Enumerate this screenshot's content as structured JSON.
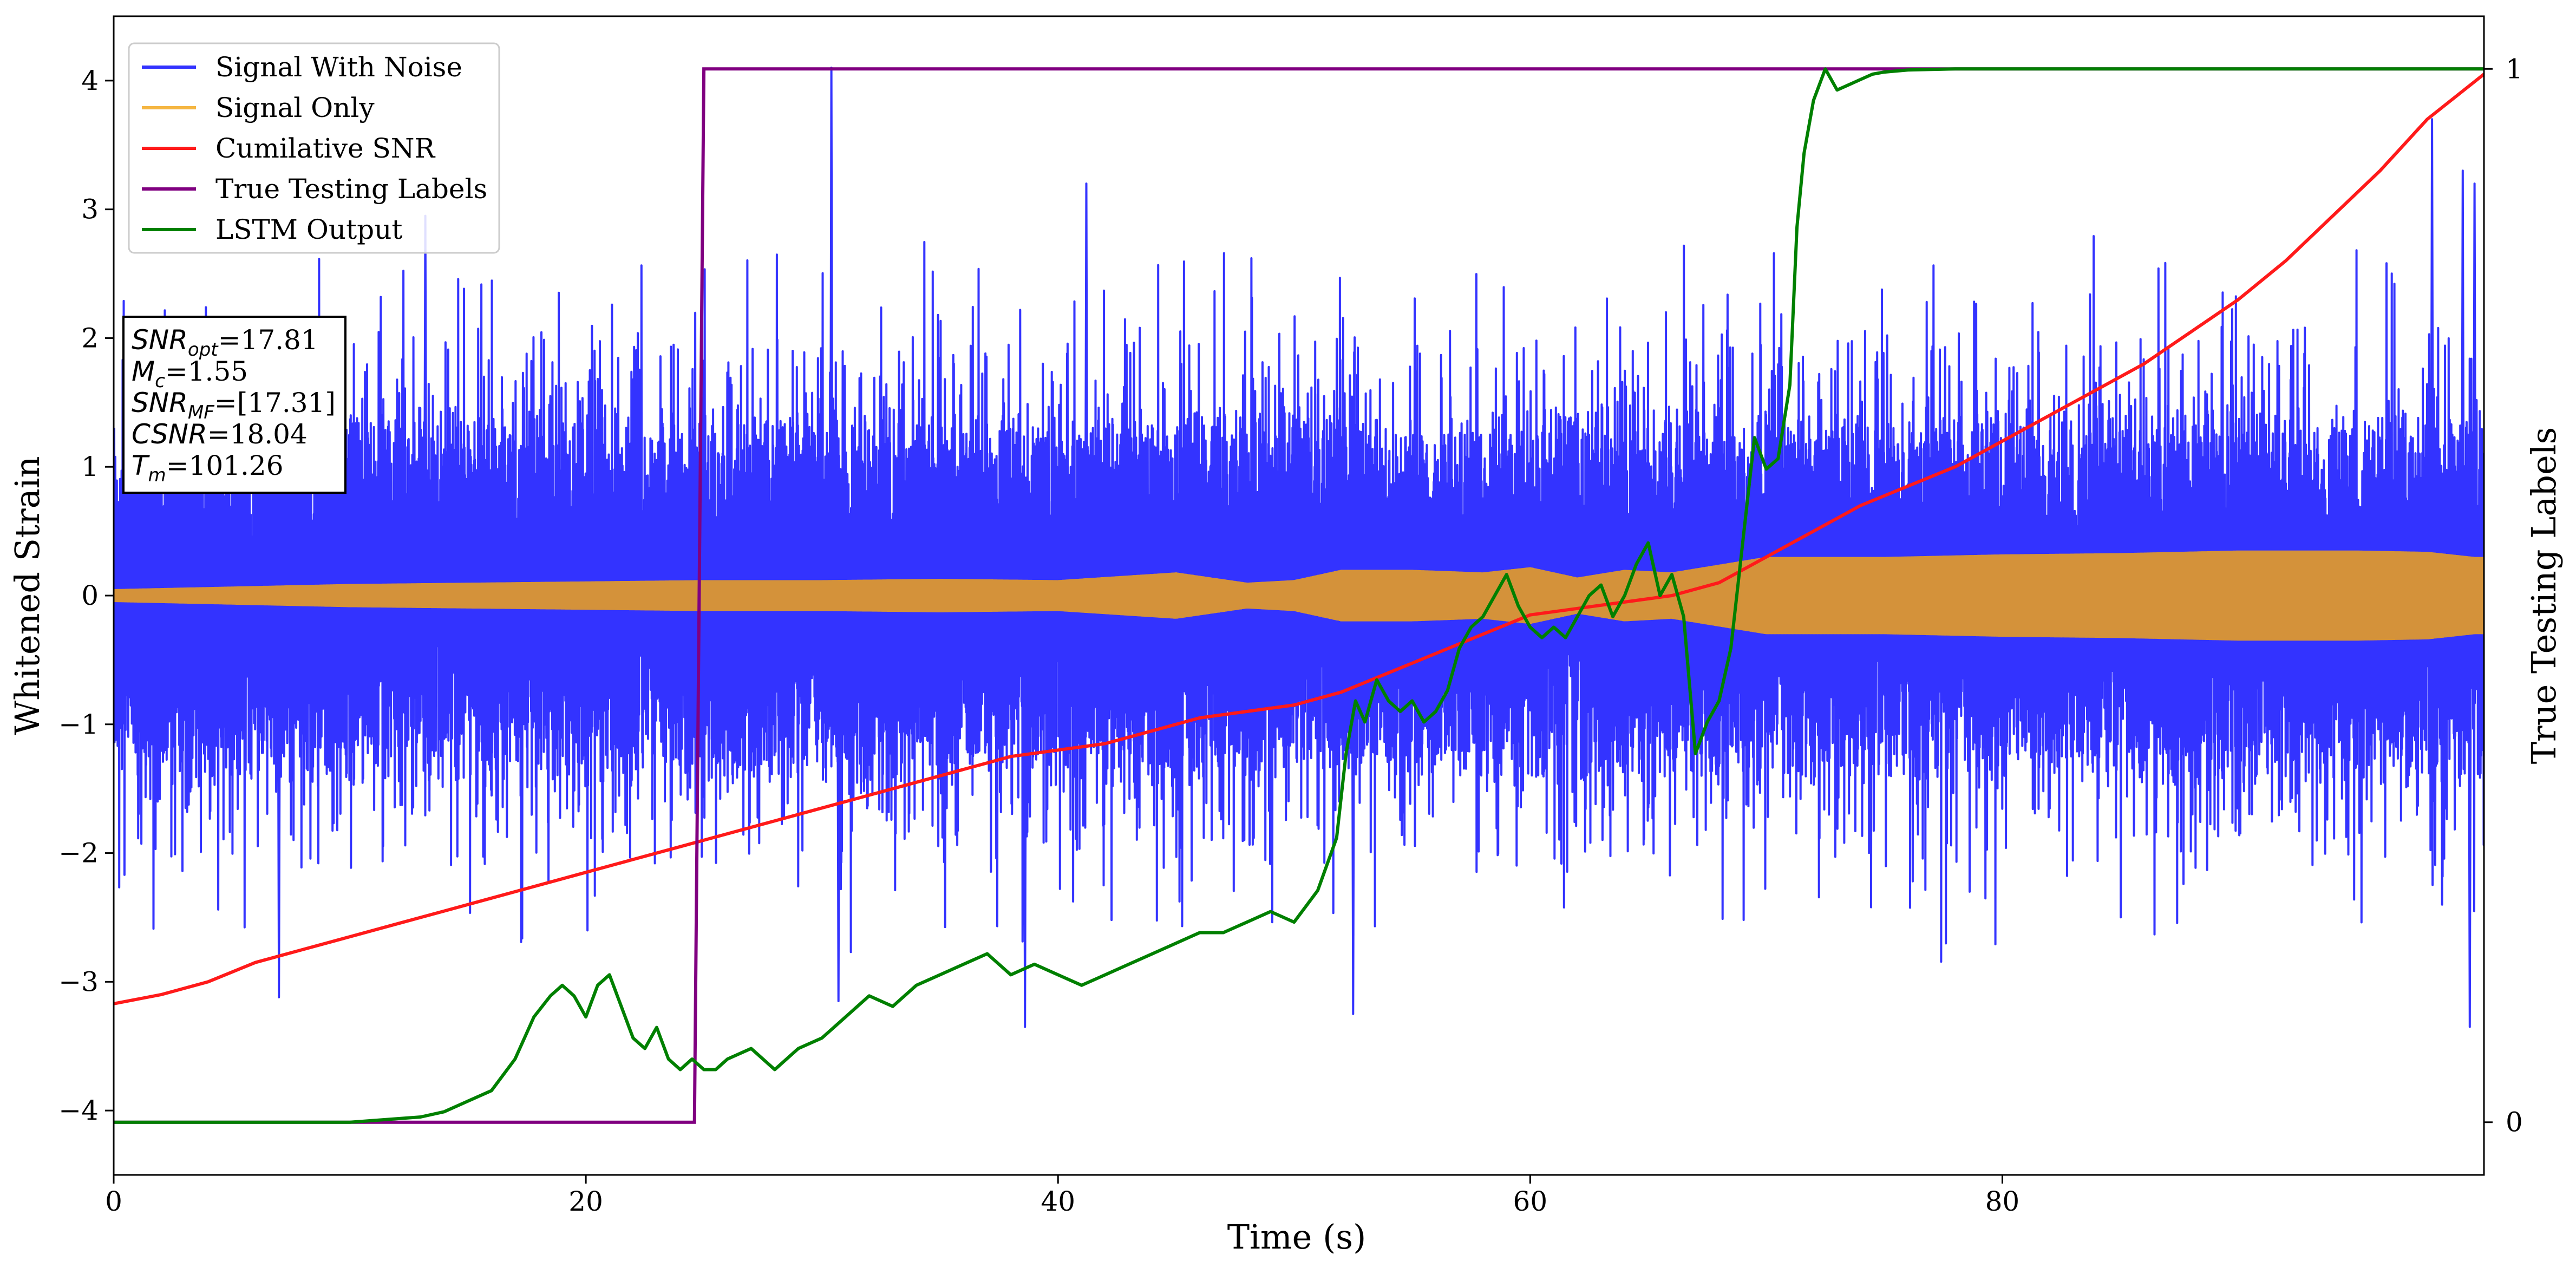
{
  "chart_data": {
    "type": "line",
    "xlabel": "Time (s)",
    "ylabel": "Whitened Strain",
    "y2label": "True Testing Labels",
    "xlim": [
      0,
      100.4
    ],
    "ylim": [
      -4.5,
      4.5
    ],
    "y2lim": [
      -0.05,
      1.05
    ],
    "x_ticks": [
      0,
      20,
      40,
      60,
      80
    ],
    "y_ticks": [
      -4,
      -3,
      -2,
      -1,
      0,
      1,
      2,
      3,
      4
    ],
    "y2_ticks": [
      0,
      1
    ],
    "legend_position": "top-left",
    "legend": [
      {
        "label": "Signal With Noise",
        "color": "#3333ff"
      },
      {
        "label": "Signal Only",
        "color": "#f5b642"
      },
      {
        "label": "Cumilative SNR",
        "color": "#ff1a1a"
      },
      {
        "label": "True Testing Labels",
        "color": "#800080"
      },
      {
        "label": "LSTM Output",
        "color": "#008000"
      }
    ],
    "annotation": [
      {
        "var": "SNR",
        "sub": "opt",
        "value": "=17.81"
      },
      {
        "var": "M",
        "sub": "c",
        "value": "=1.55"
      },
      {
        "var": "SNR",
        "sub": "MF",
        "value": "=[17.31]"
      },
      {
        "var": "CSNR",
        "sub": "",
        "value": "=18.04"
      },
      {
        "var": "T",
        "sub": "m",
        "value": "=101.26"
      }
    ],
    "series": [
      {
        "name": "Cumilative SNR",
        "axis": "left",
        "color": "#ff1a1a",
        "x": [
          0,
          2,
          4,
          6,
          8,
          10,
          12,
          14,
          16,
          18,
          20,
          22,
          24,
          26,
          28,
          30,
          32,
          34,
          36,
          38,
          40,
          42,
          44,
          46,
          48,
          50,
          52,
          54,
          56,
          58,
          60,
          62,
          64,
          66,
          68,
          70,
          72,
          74,
          76,
          78,
          80,
          82,
          84,
          86,
          88,
          90,
          92,
          94,
          96,
          98,
          100.4
        ],
        "y": [
          -3.17,
          -3.1,
          -3.0,
          -2.85,
          -2.75,
          -2.65,
          -2.55,
          -2.45,
          -2.35,
          -2.25,
          -2.15,
          -2.05,
          -1.95,
          -1.85,
          -1.75,
          -1.65,
          -1.55,
          -1.45,
          -1.35,
          -1.25,
          -1.2,
          -1.15,
          -1.05,
          -0.95,
          -0.9,
          -0.85,
          -0.75,
          -0.6,
          -0.45,
          -0.3,
          -0.15,
          -0.1,
          -0.05,
          0.0,
          0.1,
          0.3,
          0.5,
          0.7,
          0.85,
          1.0,
          1.2,
          1.4,
          1.6,
          1.8,
          2.05,
          2.3,
          2.6,
          2.95,
          3.3,
          3.7,
          4.05
        ]
      },
      {
        "name": "True Testing Labels",
        "axis": "right",
        "color": "#800080",
        "x": [
          0,
          24.6,
          25.0,
          100.4
        ],
        "y": [
          0,
          0,
          1,
          1
        ]
      },
      {
        "name": "LSTM Output",
        "axis": "right",
        "color": "#008000",
        "x": [
          0,
          10,
          13,
          14,
          15,
          16,
          17,
          17.8,
          18.5,
          19,
          19.5,
          20,
          20.5,
          21,
          21.5,
          22,
          22.5,
          23,
          23.5,
          24,
          24.5,
          25,
          25.5,
          26,
          27,
          28,
          29,
          30,
          31,
          32,
          33,
          34,
          35,
          36,
          37,
          38,
          39,
          40,
          41,
          42,
          43,
          44,
          45,
          46,
          47,
          48,
          49,
          50,
          51,
          51.8,
          52.2,
          52.6,
          53,
          53.5,
          54,
          54.5,
          55,
          55.5,
          56,
          56.5,
          57,
          57.5,
          58,
          58.5,
          59,
          59.5,
          60,
          60.5,
          61,
          61.5,
          62,
          62.5,
          63,
          63.5,
          64,
          64.5,
          65,
          65.5,
          66,
          66.5,
          67,
          67.5,
          68,
          68.5,
          69,
          69.5,
          70,
          70.5,
          71,
          71.3,
          71.6,
          72,
          72.5,
          73,
          73.5,
          74,
          74.5,
          75,
          76,
          78,
          80,
          100.4
        ],
        "y": [
          0,
          0,
          0.005,
          0.01,
          0.02,
          0.03,
          0.06,
          0.1,
          0.12,
          0.13,
          0.12,
          0.1,
          0.13,
          0.14,
          0.11,
          0.08,
          0.07,
          0.09,
          0.06,
          0.05,
          0.06,
          0.05,
          0.05,
          0.06,
          0.07,
          0.05,
          0.07,
          0.08,
          0.1,
          0.12,
          0.11,
          0.13,
          0.14,
          0.15,
          0.16,
          0.14,
          0.15,
          0.14,
          0.13,
          0.14,
          0.15,
          0.16,
          0.17,
          0.18,
          0.18,
          0.19,
          0.2,
          0.19,
          0.22,
          0.27,
          0.35,
          0.4,
          0.38,
          0.42,
          0.4,
          0.39,
          0.4,
          0.38,
          0.39,
          0.41,
          0.45,
          0.47,
          0.48,
          0.5,
          0.52,
          0.49,
          0.47,
          0.46,
          0.47,
          0.46,
          0.48,
          0.5,
          0.51,
          0.48,
          0.5,
          0.53,
          0.55,
          0.5,
          0.52,
          0.48,
          0.35,
          0.38,
          0.4,
          0.45,
          0.55,
          0.65,
          0.62,
          0.63,
          0.7,
          0.85,
          0.92,
          0.97,
          1.0,
          0.98,
          0.985,
          0.99,
          0.995,
          0.997,
          0.999,
          1.0,
          1.0,
          1.0
        ]
      },
      {
        "name": "Signal Only",
        "axis": "left",
        "color": "#d4923a",
        "note": "rapid oscillation; envelope amplitude (peak) vs time",
        "x": [
          0,
          5,
          10,
          15,
          20,
          25,
          30,
          35,
          40,
          45,
          48,
          50,
          52,
          55,
          58,
          60,
          62,
          64,
          66,
          68,
          70,
          72,
          75,
          80,
          85,
          90,
          95,
          98,
          100,
          100.4
        ],
        "y": [
          0.05,
          0.07,
          0.09,
          0.1,
          0.11,
          0.12,
          0.12,
          0.13,
          0.12,
          0.18,
          0.1,
          0.12,
          0.2,
          0.2,
          0.18,
          0.22,
          0.14,
          0.2,
          0.18,
          0.24,
          0.3,
          0.3,
          0.3,
          0.32,
          0.33,
          0.35,
          0.35,
          0.34,
          0.3,
          0.3
        ]
      },
      {
        "name": "Signal With Noise",
        "axis": "left",
        "color": "#3333ff",
        "note": "noisy whitened strain; typical range about -1.9 to 1.9, notable peaks",
        "peaks": [
          {
            "x": 30.4,
            "y": 4.1
          },
          {
            "x": 98.2,
            "y": 3.7
          },
          {
            "x": 99.5,
            "y": 3.3
          },
          {
            "x": 100.0,
            "y": 3.2
          },
          {
            "x": 99.8,
            "y": -3.35
          },
          {
            "x": 52.5,
            "y": -3.25
          },
          {
            "x": 7.0,
            "y": -3.12
          },
          {
            "x": 38.6,
            "y": -3.35
          },
          {
            "x": 30.7,
            "y": -3.15
          },
          {
            "x": 13.2,
            "y": 2.95
          },
          {
            "x": 41.2,
            "y": 3.2
          }
        ]
      }
    ]
  }
}
